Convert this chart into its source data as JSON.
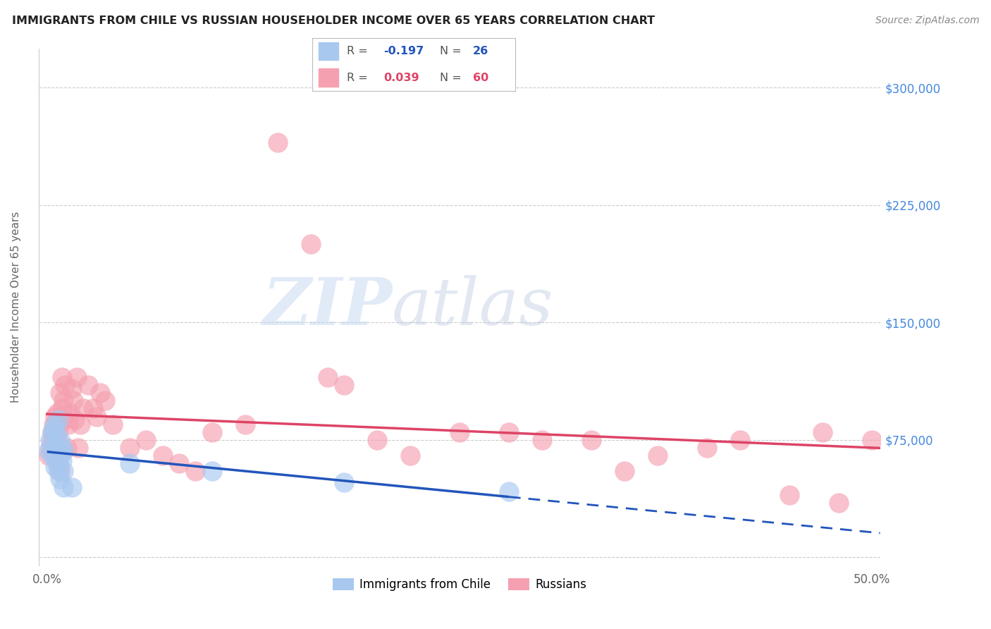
{
  "title": "IMMIGRANTS FROM CHILE VS RUSSIAN HOUSEHOLDER INCOME OVER 65 YEARS CORRELATION CHART",
  "source": "Source: ZipAtlas.com",
  "ylabel": "Householder Income Over 65 years",
  "xlim": [
    -0.005,
    0.505
  ],
  "ylim": [
    -5000,
    325000
  ],
  "yticks": [
    0,
    75000,
    150000,
    225000,
    300000
  ],
  "ytick_labels": [
    "",
    "$75,000",
    "$150,000",
    "$225,000",
    "$300,000"
  ],
  "xticks": [
    0.0,
    0.5
  ],
  "xtick_labels": [
    "0.0%",
    "50.0%"
  ],
  "chile_R": -0.197,
  "chile_N": 26,
  "russia_R": 0.039,
  "russia_N": 60,
  "chile_color": "#a8c8f0",
  "russia_color": "#f5a0b0",
  "chile_line_color": "#2255bb",
  "russia_line_color": "#dd4466",
  "background_color": "#ffffff",
  "grid_color": "#cccccc",
  "watermark_zip": "ZIP",
  "watermark_atlas": "atlas",
  "chile_x": [
    0.001,
    0.002,
    0.003,
    0.003,
    0.004,
    0.004,
    0.005,
    0.005,
    0.005,
    0.006,
    0.006,
    0.007,
    0.007,
    0.008,
    0.008,
    0.008,
    0.009,
    0.009,
    0.01,
    0.01,
    0.01,
    0.015,
    0.05,
    0.1,
    0.18,
    0.28
  ],
  "chile_y": [
    68000,
    75000,
    80000,
    65000,
    82000,
    70000,
    58000,
    72000,
    85000,
    60000,
    78000,
    55000,
    88000,
    50000,
    65000,
    75000,
    62000,
    70000,
    45000,
    55000,
    68000,
    45000,
    60000,
    55000,
    48000,
    42000
  ],
  "russia_x": [
    0.001,
    0.002,
    0.003,
    0.003,
    0.004,
    0.004,
    0.005,
    0.005,
    0.006,
    0.006,
    0.007,
    0.007,
    0.008,
    0.008,
    0.009,
    0.009,
    0.01,
    0.01,
    0.011,
    0.012,
    0.013,
    0.014,
    0.015,
    0.016,
    0.017,
    0.018,
    0.019,
    0.02,
    0.022,
    0.025,
    0.028,
    0.03,
    0.032,
    0.035,
    0.04,
    0.05,
    0.06,
    0.07,
    0.08,
    0.09,
    0.1,
    0.12,
    0.14,
    0.16,
    0.17,
    0.18,
    0.2,
    0.22,
    0.25,
    0.28,
    0.3,
    0.33,
    0.35,
    0.37,
    0.4,
    0.42,
    0.45,
    0.47,
    0.48,
    0.5
  ],
  "russia_y": [
    65000,
    70000,
    75000,
    80000,
    85000,
    72000,
    90000,
    68000,
    78000,
    92000,
    60000,
    82000,
    55000,
    105000,
    115000,
    95000,
    100000,
    88000,
    110000,
    70000,
    85000,
    92000,
    108000,
    100000,
    88000,
    115000,
    70000,
    85000,
    95000,
    110000,
    95000,
    90000,
    105000,
    100000,
    85000,
    70000,
    75000,
    65000,
    60000,
    55000,
    80000,
    85000,
    265000,
    200000,
    115000,
    110000,
    75000,
    65000,
    80000,
    80000,
    75000,
    75000,
    55000,
    65000,
    70000,
    75000,
    40000,
    80000,
    35000,
    75000
  ]
}
